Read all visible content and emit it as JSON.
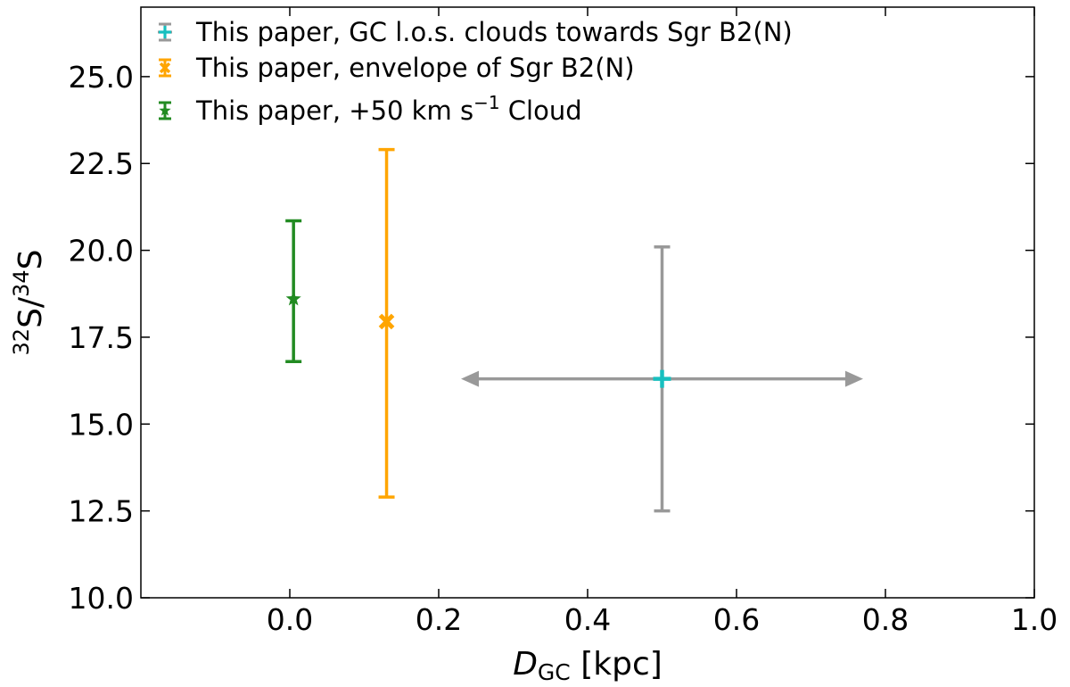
{
  "chart_data": {
    "type": "scatter",
    "title": "",
    "xlabel": {
      "main": "D",
      "sub": "GC",
      "rest": " [kpc]"
    },
    "ylabel": {
      "sup1": "32",
      "mid": "S/",
      "sup2": "34",
      "end": "S"
    },
    "xlim": [
      -0.2,
      1.0
    ],
    "ylim": [
      10.0,
      27.0
    ],
    "xticks": [
      0.0,
      0.2,
      0.4,
      0.6,
      0.8,
      1.0
    ],
    "xtick_labels": [
      "0.0",
      "0.2",
      "0.4",
      "0.6",
      "0.8",
      "1.0"
    ],
    "yticks": [
      10.0,
      12.5,
      15.0,
      17.5,
      20.0,
      22.5,
      25.0
    ],
    "ytick_labels": [
      "10.0",
      "12.5",
      "15.0",
      "17.5",
      "20.0",
      "22.5",
      "25.0"
    ],
    "grid": false,
    "legend_position": "top-left",
    "series": [
      {
        "name": "This paper, GC l.o.s. clouds towards Sgr B2(N)",
        "marker": "plus",
        "color": "#17bfbf",
        "errorbar_color": "#999999",
        "x": 0.5,
        "y": 16.3,
        "y_err_low": 12.5,
        "y_err_high": 20.1,
        "x_arrow_low": 0.23,
        "x_arrow_high": 0.77
      },
      {
        "name": "This paper, envelope of Sgr B2(N)",
        "marker": "x",
        "color": "#ffa500",
        "errorbar_color": "#ffa500",
        "x": 0.13,
        "y": 17.95,
        "y_err_low": 12.9,
        "y_err_high": 22.9
      },
      {
        "name": "This paper, +50 km s^-1 Cloud",
        "name_main": "This paper, +50 km s",
        "name_sup": "−1",
        "name_end": " Cloud",
        "marker": "star",
        "color": "#228b22",
        "errorbar_color": "#228b22",
        "x": 0.005,
        "y": 18.6,
        "y_err_low": 16.8,
        "y_err_high": 20.85
      }
    ]
  }
}
